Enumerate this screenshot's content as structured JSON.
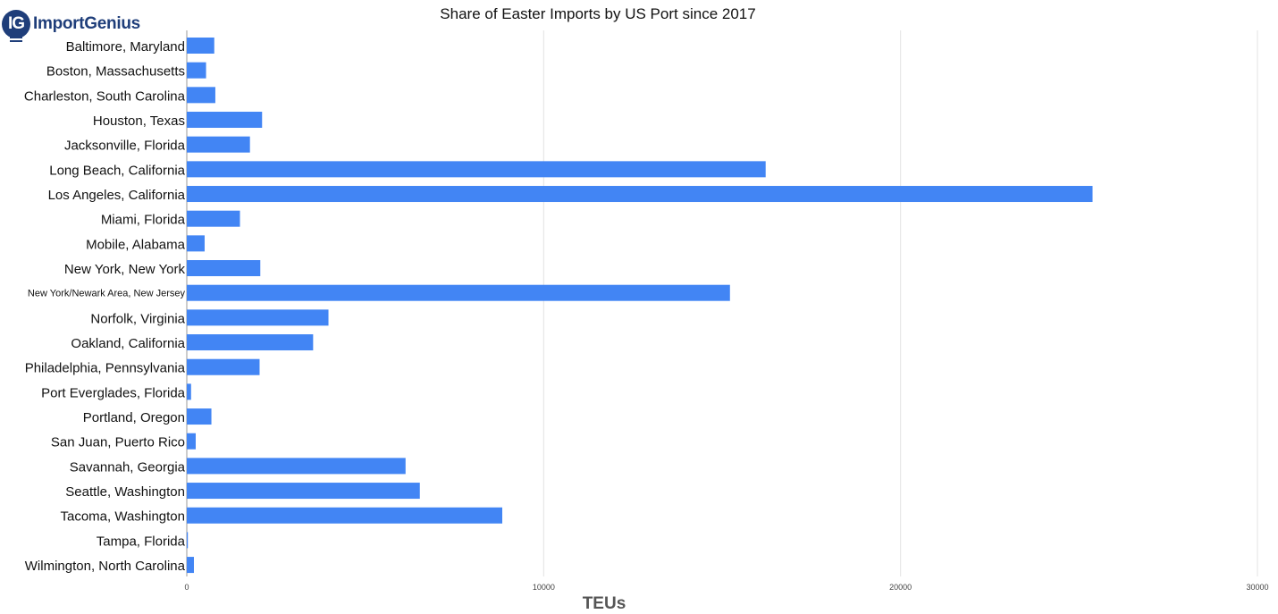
{
  "brand": {
    "mark": "IG",
    "word": "ImportGenius"
  },
  "chart_data": {
    "type": "bar",
    "orientation": "horizontal",
    "title": "Share of Easter Imports by US Port since 2017",
    "xlabel": "TEUs",
    "ylabel": "",
    "xlim": [
      0,
      30000
    ],
    "xticks": [
      0,
      10000,
      20000,
      30000
    ],
    "grid": true,
    "legend": "none",
    "bar_color": "#4285f4",
    "categories": [
      "Baltimore, Maryland",
      "Boston, Massachusetts",
      "Charleston, South Carolina",
      "Houston, Texas",
      "Jacksonville, Florida",
      "Long Beach, California",
      "Los Angeles, California",
      "Miami, Florida",
      "Mobile, Alabama",
      "New York, New York",
      "New York/Newark Area, New Jersey",
      "Norfolk, Virginia",
      "Oakland, California",
      "Philadelphia, Pennsylvania",
      "Port Everglades, Florida",
      "Portland, Oregon",
      "San Juan, Puerto Rico",
      "Savannah, Georgia",
      "Seattle, Washington",
      "Tacoma, Washington",
      "Tampa, Florida",
      "Wilmington, North Carolina"
    ],
    "values": [
      770,
      540,
      800,
      2110,
      1770,
      16220,
      25380,
      1490,
      500,
      2060,
      15220,
      3970,
      3540,
      2040,
      120,
      690,
      250,
      6130,
      6530,
      8840,
      30,
      200
    ]
  }
}
